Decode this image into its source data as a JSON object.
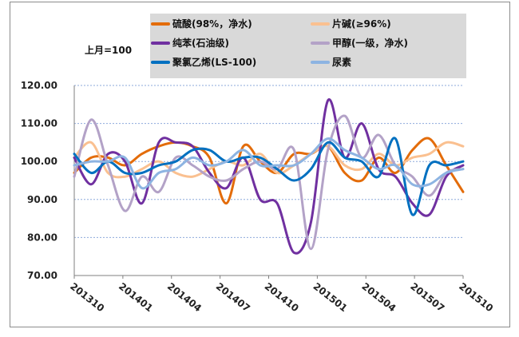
{
  "chart_data": {
    "type": "line",
    "unit_label": "上月=100",
    "ylim": [
      70,
      120
    ],
    "yticks": [
      "70.00",
      "80.00",
      "90.00",
      "100.00",
      "110.00",
      "120.00"
    ],
    "x_tick_labels": [
      "201310",
      "201401",
      "201404",
      "201407",
      "201410",
      "201501",
      "201504",
      "201507",
      "201510"
    ],
    "grid": "horizontal dotted",
    "legend_position": "top-right",
    "series": [
      {
        "name": "硫酸(98%，净水)",
        "color": "#e36c0a",
        "values": [
          97,
          101,
          101,
          99,
          102,
          104,
          105,
          104,
          101,
          89,
          104,
          100,
          97,
          102,
          102,
          104,
          97,
          95,
          101,
          97,
          103,
          106,
          99,
          92
        ]
      },
      {
        "name": "片碱(≥96%)",
        "color": "#fac090",
        "values": [
          101,
          105,
          97,
          96,
          98,
          100,
          97,
          96,
          98,
          100,
          99,
          102,
          97,
          99,
          102,
          104,
          99,
          98,
          102,
          99,
          101,
          102,
          105,
          104
        ]
      },
      {
        "name": "纯苯(石油级)",
        "color": "#7030a0",
        "values": [
          101,
          94,
          102,
          100,
          89,
          105,
          105,
          104,
          97,
          93,
          101,
          90,
          89,
          76,
          84,
          116,
          101,
          110,
          98,
          96,
          89,
          86,
          96,
          99
        ]
      },
      {
        "name": "甲醇(一级，净水)",
        "color": "#b3a2c7",
        "values": [
          96,
          111,
          99,
          87,
          96,
          92,
          101,
          99,
          96,
          95,
          98,
          100,
          98,
          103,
          77,
          103,
          112,
          101,
          107,
          99,
          96,
          91,
          97,
          98
        ]
      },
      {
        "name": "聚氯乙烯(LS-100)",
        "color": "#0070c0",
        "values": [
          102,
          97,
          100,
          97,
          97,
          99,
          100,
          103,
          103,
          100,
          101,
          101,
          98,
          95,
          98,
          105,
          101,
          100,
          96,
          106,
          86,
          99,
          99,
          100
        ]
      },
      {
        "name": "尿素",
        "color": "#8db4e2",
        "values": [
          99,
          100,
          100,
          101,
          93,
          97,
          98,
          101,
          99,
          100,
          103,
          99,
          99,
          99,
          102,
          106,
          103,
          101,
          98,
          99,
          94,
          94,
          97,
          98
        ]
      }
    ]
  }
}
